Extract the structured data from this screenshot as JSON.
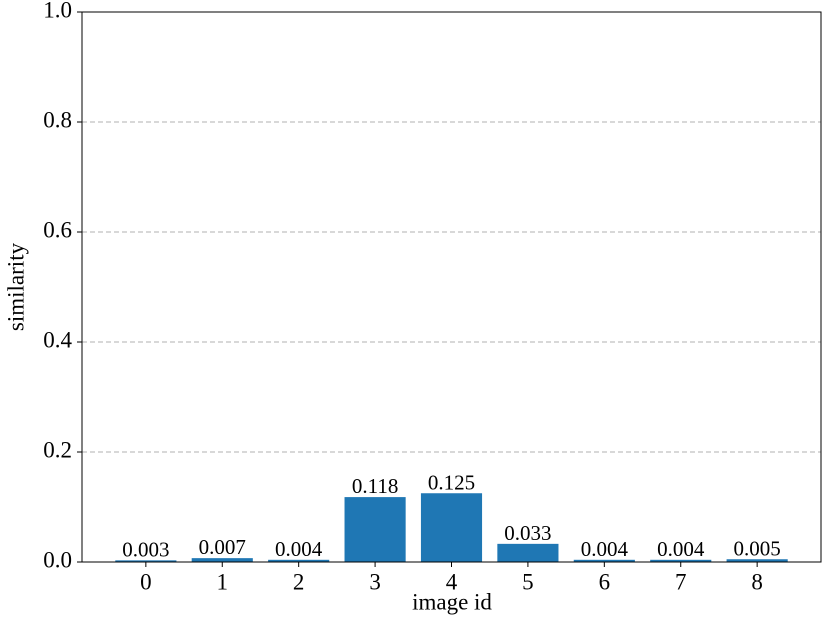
{
  "chart_data": {
    "type": "bar",
    "xlabel": "image id",
    "ylabel": "similarity",
    "categories": [
      "0",
      "1",
      "2",
      "3",
      "4",
      "5",
      "6",
      "7",
      "8"
    ],
    "values": [
      0.003,
      0.007,
      0.004,
      0.118,
      0.125,
      0.033,
      0.004,
      0.004,
      0.005
    ],
    "color": "#1f77b4",
    "ylim": [
      0,
      1
    ],
    "yticks": [
      {
        "value": 0,
        "label": "0.0"
      },
      0.2,
      0.4,
      0.6,
      0.8,
      {
        "value": 1,
        "label": "1.0"
      }
    ],
    "grid": true
  }
}
